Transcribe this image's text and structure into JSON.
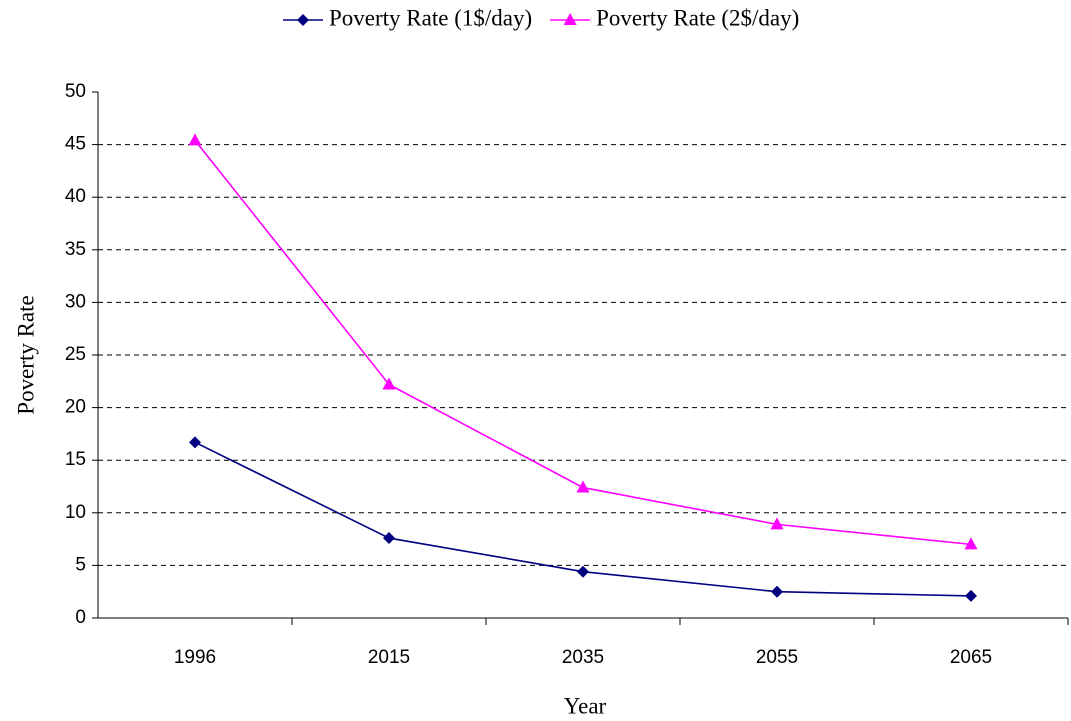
{
  "chart_data": {
    "type": "line",
    "x_label": "Year",
    "y_label": "Poverty Rate",
    "categories": [
      "1996",
      "2015",
      "2035",
      "2055",
      "2065"
    ],
    "series": [
      {
        "name": "Poverty Rate (1$/day)",
        "color": "#000080",
        "marker": "diamond",
        "values": [
          16.7,
          7.6,
          4.4,
          2.5,
          2.1
        ]
      },
      {
        "name": "Poverty Rate (2$/day)",
        "color": "#ff00ff",
        "marker": "triangle",
        "values": [
          45.4,
          22.2,
          12.4,
          8.9,
          7.0
        ]
      }
    ],
    "ylim": [
      0,
      50
    ],
    "yticks": [
      0,
      5,
      10,
      15,
      20,
      25,
      30,
      35,
      40,
      45,
      50
    ],
    "grid": true,
    "legend": "top"
  }
}
